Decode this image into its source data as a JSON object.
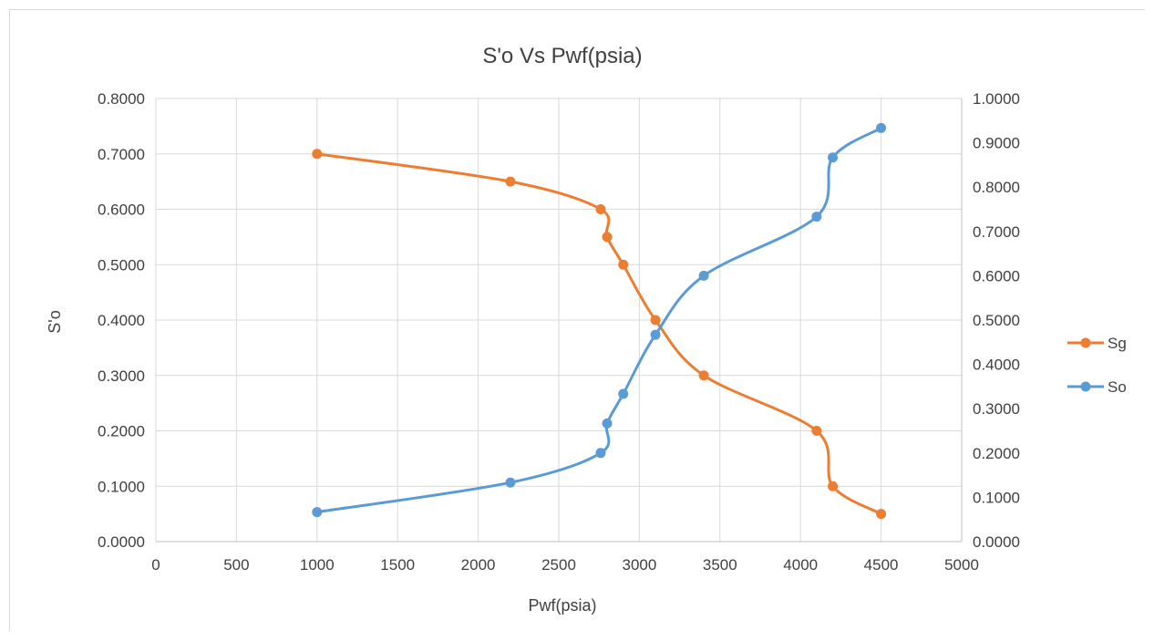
{
  "chart_data": {
    "type": "line",
    "title": "S'o Vs Pwf(psia)",
    "xlabel": "Pwf(psia)",
    "ylabel": "S'o",
    "xlim": [
      0,
      5000
    ],
    "x_ticks": [
      "0",
      "500",
      "1000",
      "1500",
      "2000",
      "2500",
      "3000",
      "3500",
      "4000",
      "4500",
      "5000"
    ],
    "ylim_left": [
      0,
      0.8
    ],
    "y_ticks_left": [
      "0.0000",
      "0.1000",
      "0.2000",
      "0.3000",
      "0.4000",
      "0.5000",
      "0.6000",
      "0.7000",
      "0.8000"
    ],
    "ylim_right": [
      0,
      1.0
    ],
    "y_ticks_right": [
      "0.0000",
      "0.1000",
      "0.2000",
      "0.3000",
      "0.4000",
      "0.5000",
      "0.6000",
      "0.7000",
      "0.8000",
      "0.9000",
      "1.0000"
    ],
    "grid": true,
    "legend_position": "right",
    "series": [
      {
        "name": "Sg",
        "axis": "left",
        "color": "#ed7d31",
        "x": [
          1000,
          2200,
          2760,
          2800,
          2900,
          3100,
          3400,
          4100,
          4200,
          4500
        ],
        "y": [
          0.7,
          0.65,
          0.6,
          0.55,
          0.5,
          0.4,
          0.3,
          0.2,
          0.1,
          0.05
        ]
      },
      {
        "name": "So",
        "axis": "right",
        "color": "#5b9bd5",
        "x": [
          1000,
          2200,
          2760,
          2800,
          2900,
          3100,
          3400,
          4100,
          4200,
          4500
        ],
        "y": [
          0.0667,
          0.1333,
          0.2,
          0.2667,
          0.3333,
          0.4667,
          0.6,
          0.7333,
          0.8667,
          0.9333
        ]
      }
    ]
  }
}
